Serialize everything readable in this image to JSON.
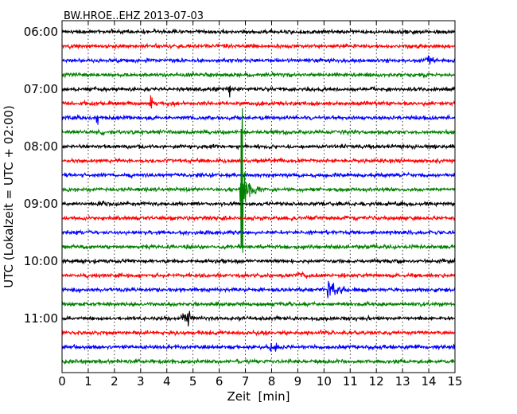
{
  "chart_data": {
    "type": "line",
    "title": "BW.HROE..EHZ 2013-07-03",
    "xlabel": "Zeit  [min]",
    "ylabel": "UTC (Lokalzeit = UTC + 02:00)",
    "xlim": [
      0,
      15
    ],
    "x_ticks": [
      0,
      1,
      2,
      3,
      4,
      5,
      6,
      7,
      8,
      9,
      10,
      11,
      12,
      13,
      14,
      15
    ],
    "x_tick_labels": [
      "0",
      "1",
      "2",
      "3",
      "4",
      "5",
      "6",
      "7",
      "8",
      "9",
      "10",
      "11",
      "12",
      "13",
      "14",
      "15"
    ],
    "grid": "vertical dotted",
    "trace_start_times": [
      "06:00",
      "06:15",
      "06:30",
      "06:45",
      "07:00",
      "07:15",
      "07:30",
      "07:45",
      "08:00",
      "08:15",
      "08:30",
      "08:45",
      "09:00",
      "09:15",
      "09:30",
      "09:45",
      "10:00",
      "10:15",
      "10:30",
      "10:45",
      "11:00",
      "11:15",
      "11:30",
      "11:45"
    ],
    "y_tick_labels": [
      "06:00",
      "07:00",
      "08:00",
      "09:00",
      "10:00",
      "11:00"
    ],
    "y_tick_traces": [
      0,
      4,
      8,
      12,
      16,
      20
    ],
    "trace_colors": [
      "#000000",
      "#ff0000",
      "#0000ff",
      "#008000"
    ],
    "events": [
      {
        "trace": 11,
        "x_min": 6.85,
        "type": "large-earthquake"
      },
      {
        "trace": 18,
        "x_min": 10.15,
        "type": "local-event"
      },
      {
        "trace": 20,
        "x_min": 4.6,
        "type": "local-event"
      },
      {
        "trace": 4,
        "x_min": 6.4,
        "type": "spike"
      },
      {
        "trace": 5,
        "x_min": 3.4,
        "type": "spike"
      },
      {
        "trace": 6,
        "x_min": 1.35,
        "type": "spike"
      },
      {
        "trace": 12,
        "x_min": 1.55,
        "type": "small-event"
      },
      {
        "trace": 2,
        "x_min": 14.0,
        "type": "small-event"
      },
      {
        "trace": 17,
        "x_min": 9.2,
        "type": "small-event"
      },
      {
        "trace": 7,
        "x_min": 8.3,
        "type": "small-event"
      },
      {
        "trace": 22,
        "x_min": 8.1,
        "type": "small-event"
      }
    ]
  }
}
